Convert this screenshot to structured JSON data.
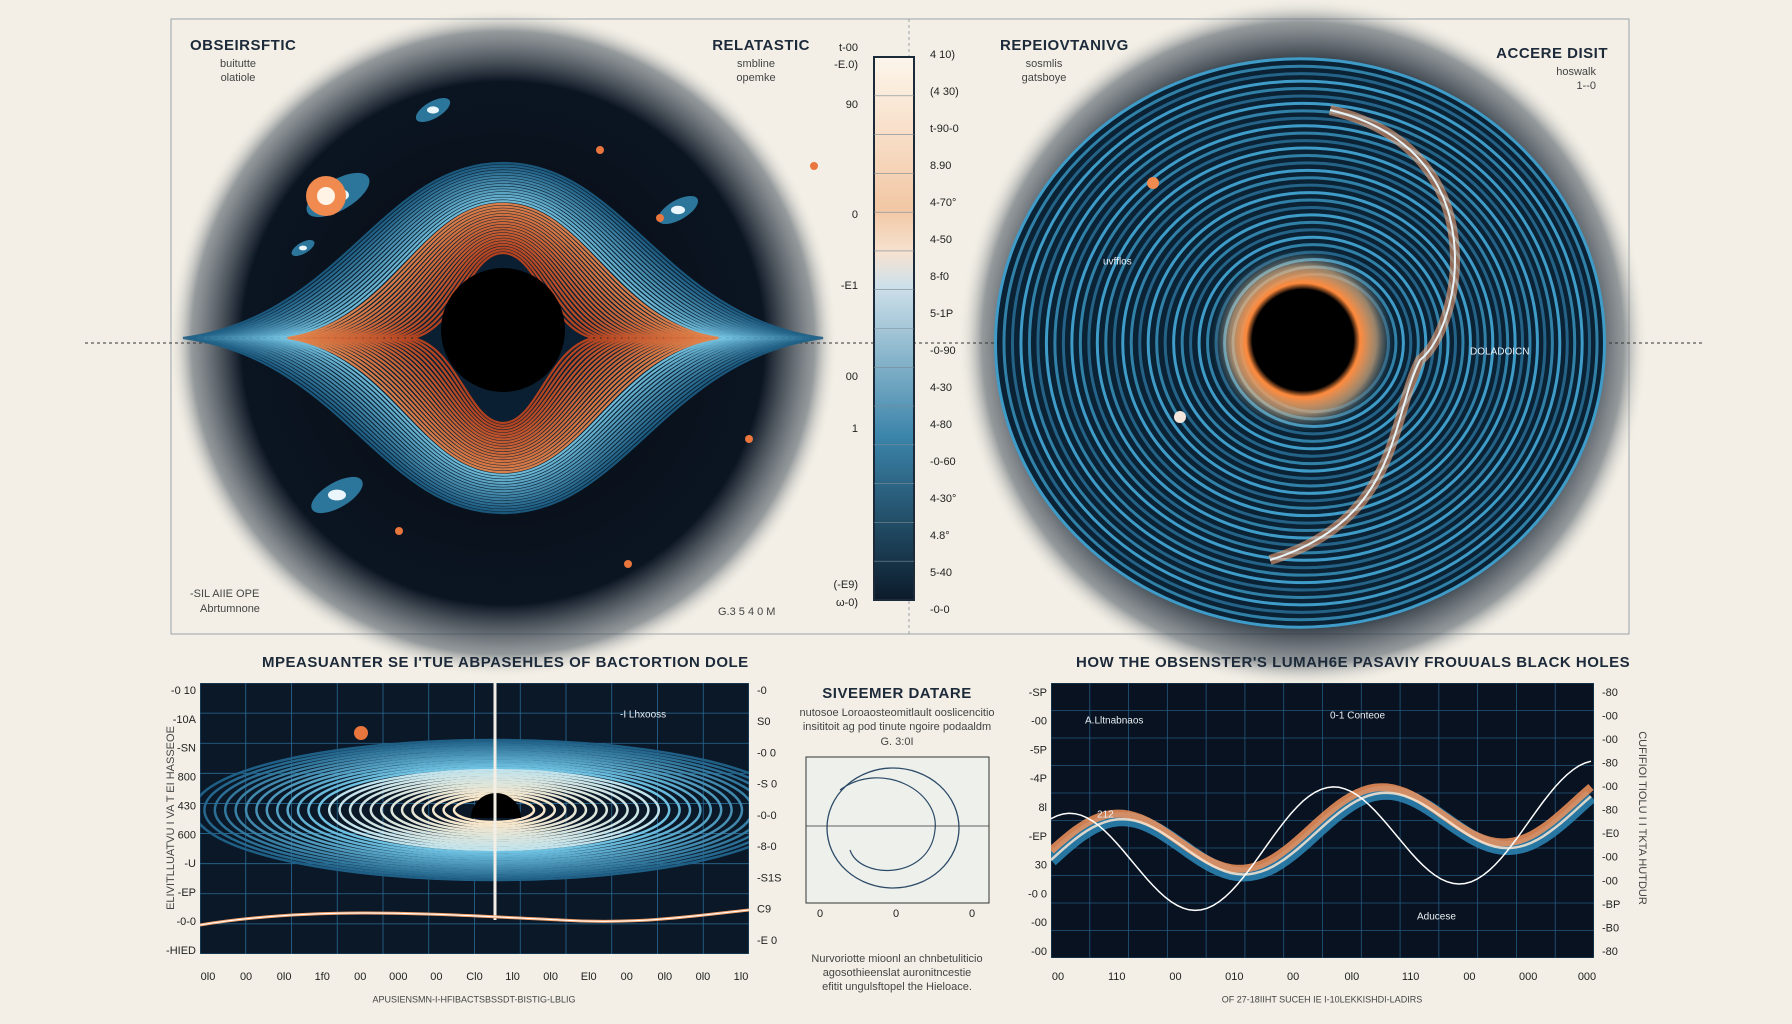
{
  "top_left": {
    "title": "OBSEIRSFTIC",
    "subtitle": [
      "buitutte",
      "olatiole"
    ],
    "footer": [
      "-SIL AIIE OPE",
      "Abrtumnone"
    ],
    "scale": "G.3 5 4 0 M"
  },
  "top_center": {
    "title": "RELATASTIC",
    "subtitle": [
      "smbline",
      "opemke"
    ]
  },
  "colorbar": {
    "left_labels": [
      "t-00",
      "-E.0)",
      "90",
      "0",
      "-E1",
      "00",
      "1",
      "(-E9)",
      "ω-0)"
    ],
    "right_labels": [
      "4 10)",
      "(4 30)",
      "t-90-0",
      "8.90",
      "4-70°",
      "4-50",
      "8-f0",
      "5-1P",
      "-0-90",
      "4-30",
      "4-80",
      "-0-60",
      "4-30°",
      "4.8°",
      "5-40",
      "-0-0"
    ]
  },
  "top_right_center": {
    "title": "REPEIOVTANIVG",
    "subtitle": [
      "sosmlis",
      "gatsboye"
    ]
  },
  "top_right": {
    "title": "ACCERE DISIT",
    "subtitle": [
      "hoswalk",
      "1--0"
    ],
    "annotations": [
      "uvfflos",
      "DOLADOICN"
    ]
  },
  "bottom_left": {
    "title": "MPEASUANTER SE I'TUE ABPASEHLES OF BACTORTION DOLE",
    "legend": "-I Lhxooss",
    "side_label": "ELIVITLLUATVU I VA T EI HASSEOE",
    "y_left": [
      "-0 10",
      "-10A",
      "-SN",
      "800",
      "430",
      "600",
      "-U",
      "-EP",
      "-0-0",
      "-HIED"
    ],
    "y_right": [
      "-0",
      "S0",
      "-0 0",
      "-S 0",
      "-0-0",
      "-8-0",
      "-S1S",
      "C9",
      "-E 0"
    ],
    "x_labels": [
      "0l0",
      "00",
      "0l0",
      "1f0",
      "00",
      "000",
      "00",
      "Cl0",
      "1l0",
      "0l0",
      "El0",
      "00",
      "0l0",
      "0l0",
      "1l0"
    ],
    "caption": "APUSIENSMN-I-HFIBACTSBSSDT-BISTIG-LBLIG"
  },
  "bottom_center": {
    "title": "SIVEEMER DATARE",
    "description": [
      "nutosoe Loroaosteomitlault ooslicencitio",
      "insititoit ag pod tinute ngoire podaaldm"
    ],
    "scale": "G. 3:0I",
    "x_labels": [
      "0",
      "0",
      "0"
    ],
    "note": [
      "Nurvoriotte mioonl an chnbetuliticio",
      "agosothieenslat auronitncestie",
      "efitit ungulsftopel the Hieloace."
    ]
  },
  "bottom_right": {
    "title": "HOW THE OBSENSTER'S LUMAH6E PASAVIY FROUUALS BLACK HOLES",
    "annotations": [
      "A.Lltnabnaos",
      "0-1 Conteoe",
      "212",
      "Aducese"
    ],
    "side_label": "CUFIFIOI TIOLU I I TKTA HUTDUR",
    "y_left": [
      "-SP",
      "-00",
      "-5P",
      "-4P",
      "8l",
      "-EP",
      "30",
      "-0 0",
      "-00",
      "-00"
    ],
    "y_right": [
      "-80",
      "-00",
      "-00",
      "-80",
      "-00",
      "-80",
      "-E0",
      "-00",
      "-00",
      "-BP",
      "-B0",
      "-80"
    ],
    "x_labels": [
      "00",
      "110",
      "00",
      "010",
      "00",
      "0l0",
      "110",
      "00",
      "000",
      "000"
    ],
    "caption": "OF 27-18IIHT SUCEH IE I-10LEKKISHDI-LADIRS"
  }
}
